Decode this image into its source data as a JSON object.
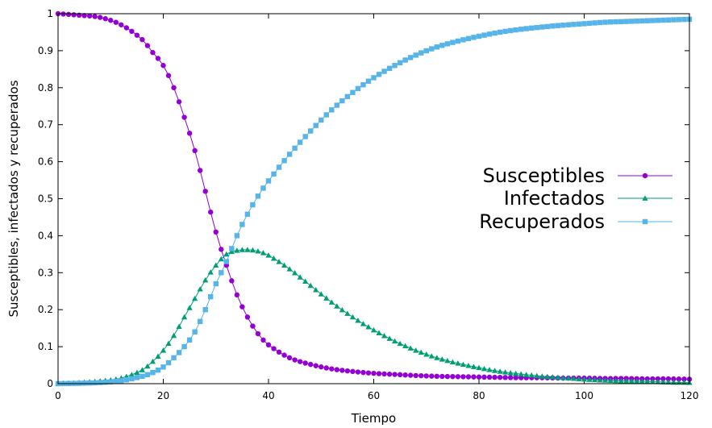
{
  "chart_data": {
    "type": "line",
    "xlabel": "Tiempo",
    "ylabel": "Susceptibles, infectados y recuperados",
    "xlim": [
      0,
      120
    ],
    "ylim": [
      0,
      1
    ],
    "xticks": [
      0,
      20,
      40,
      60,
      80,
      100,
      120
    ],
    "yticks": [
      0,
      0.1,
      0.2,
      0.3,
      0.4,
      0.5,
      0.6,
      0.7,
      0.8,
      0.9,
      1
    ],
    "ytick_labels": [
      "0",
      "0.1",
      "0.2",
      "0.3",
      "0.4",
      "0.5",
      "0.6",
      "0.7",
      "0.8",
      "0.9",
      "1"
    ],
    "legend_position": "right",
    "x": [
      0,
      4,
      8,
      12,
      16,
      18,
      20,
      22,
      24,
      26,
      28,
      30,
      32,
      34,
      36,
      38,
      40,
      44,
      48,
      52,
      56,
      60,
      64,
      68,
      72,
      76,
      80,
      84,
      88,
      92,
      96,
      100,
      104,
      108,
      112,
      116,
      120
    ],
    "series": [
      {
        "name": "Susceptibles",
        "color": "#9400d3",
        "marker": "circle",
        "values": [
          1.0,
          0.996,
          0.99,
          0.97,
          0.93,
          0.895,
          0.86,
          0.8,
          0.72,
          0.63,
          0.52,
          0.41,
          0.32,
          0.24,
          0.18,
          0.135,
          0.105,
          0.07,
          0.052,
          0.04,
          0.033,
          0.028,
          0.025,
          0.022,
          0.02,
          0.019,
          0.018,
          0.017,
          0.016,
          0.016,
          0.015,
          0.015,
          0.014,
          0.014,
          0.013,
          0.013,
          0.012
        ]
      },
      {
        "name": "Infectados",
        "color": "#009e73",
        "marker": "triangle",
        "values": [
          0.001,
          0.003,
          0.007,
          0.015,
          0.037,
          0.06,
          0.09,
          0.13,
          0.18,
          0.23,
          0.28,
          0.32,
          0.35,
          0.36,
          0.362,
          0.358,
          0.347,
          0.31,
          0.265,
          0.22,
          0.18,
          0.145,
          0.115,
          0.09,
          0.07,
          0.055,
          0.043,
          0.033,
          0.026,
          0.02,
          0.016,
          0.012,
          0.009,
          0.007,
          0.006,
          0.004,
          0.003
        ]
      },
      {
        "name": "Recuperados",
        "color": "#56b4e9",
        "marker": "square",
        "values": [
          0.0,
          0.001,
          0.003,
          0.008,
          0.02,
          0.03,
          0.045,
          0.07,
          0.1,
          0.14,
          0.2,
          0.27,
          0.33,
          0.4,
          0.458,
          0.507,
          0.548,
          0.62,
          0.683,
          0.74,
          0.787,
          0.827,
          0.86,
          0.888,
          0.91,
          0.926,
          0.939,
          0.95,
          0.958,
          0.964,
          0.969,
          0.973,
          0.977,
          0.979,
          0.981,
          0.983,
          0.985
        ]
      }
    ]
  }
}
